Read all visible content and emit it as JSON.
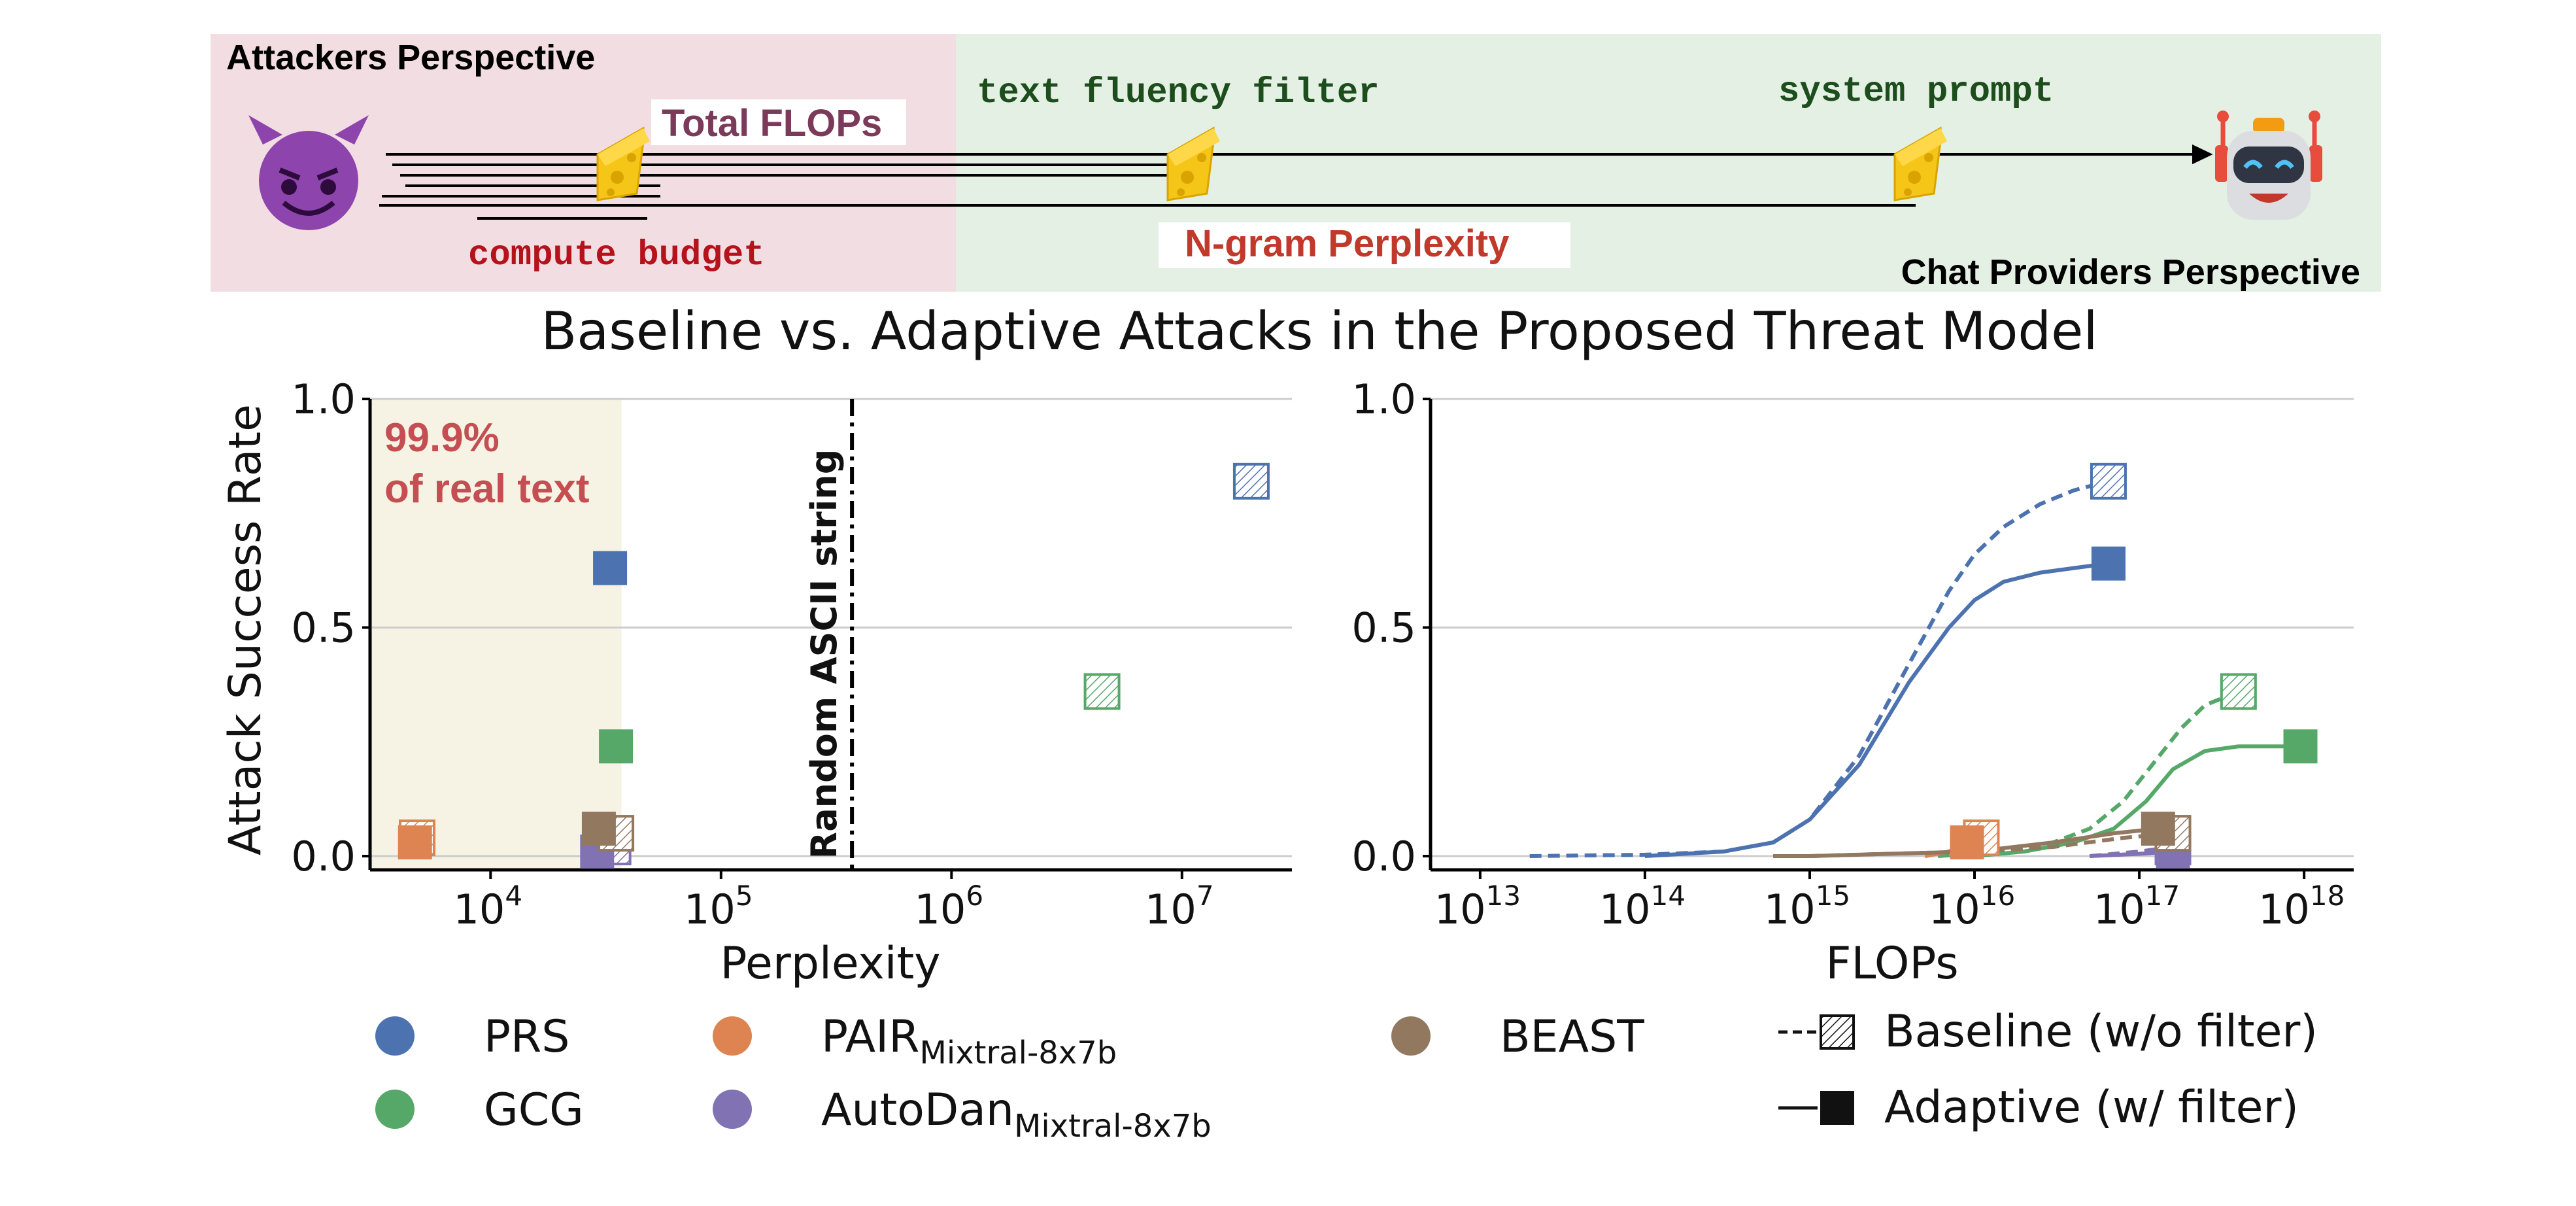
{
  "banner": {
    "left_title": "Attackers Perspective",
    "right_title": "Chat Providers Perspective",
    "total_flops": "Total FLOPs",
    "compute_budget": "compute budget",
    "fluency_filter": "text fluency filter",
    "ngram_perplexity": "N-gram Perplexity",
    "system_prompt": "system prompt",
    "left_bg": "#f2dee2",
    "right_bg": "#e4f0e3",
    "icons": [
      "devil-face-icon",
      "swiss-cheese-icon",
      "robot-face-icon"
    ]
  },
  "suptitle": "Baseline vs. Adaptive Attacks in the Proposed Threat Model",
  "region_label": [
    "99.9%",
    "of real text"
  ],
  "vline_label": "Random ASCII string",
  "legend": {
    "items": [
      {
        "label": "PRS",
        "color": "#4c72b0"
      },
      {
        "label": "GCG",
        "color": "#55a868"
      },
      {
        "label": "PAIR",
        "sub": "Mixtral-8x7b",
        "color": "#dd8452"
      },
      {
        "label": "AutoDan",
        "sub": "Mixtral-8x7b",
        "color": "#8172b3"
      },
      {
        "label": "BEAST",
        "color": "#937860"
      }
    ],
    "style_items": [
      {
        "label": "Baseline (w/o filter)"
      },
      {
        "label": "Adaptive (w/ filter)"
      }
    ]
  },
  "chart_data": [
    {
      "type": "scatter",
      "xlabel": "Perplexity",
      "ylabel": "Attack Success Rate",
      "xscale": "log",
      "xlim": [
        3000,
        30000000
      ],
      "ylim": [
        -0.03,
        1.0
      ],
      "xticks": [
        10000,
        100000,
        1000000,
        10000000
      ],
      "xtick_labels": [
        [
          "10",
          "4"
        ],
        [
          "10",
          "5"
        ],
        [
          "10",
          "6"
        ],
        [
          "10",
          "7"
        ]
      ],
      "yticks": [
        0.0,
        0.5,
        1.0
      ],
      "ytick_labels": [
        "0.0",
        "0.5",
        "1.0"
      ],
      "grid": "horizontal",
      "shaded_region": {
        "x": [
          3000,
          37000
        ],
        "color": "#f6f3e4"
      },
      "vline": {
        "x": 370000,
        "style": "dash-dot"
      },
      "series": [
        {
          "name": "PRS",
          "color": "#4c72b0",
          "adaptive": {
            "x": 33000,
            "y": 0.63
          },
          "baseline": {
            "x": 20000000,
            "y": 0.82
          }
        },
        {
          "name": "GCG",
          "color": "#55a868",
          "adaptive": {
            "x": 35000,
            "y": 0.24
          },
          "baseline": {
            "x": 4500000,
            "y": 0.36
          }
        },
        {
          "name": "PAIR",
          "color": "#dd8452",
          "adaptive": {
            "x": 4700,
            "y": 0.03
          },
          "baseline": {
            "x": 4800,
            "y": 0.04
          }
        },
        {
          "name": "AutoDan",
          "color": "#8172b3",
          "adaptive": {
            "x": 29000,
            "y": 0.01
          },
          "baseline": {
            "x": 34000,
            "y": 0.02
          }
        },
        {
          "name": "BEAST",
          "color": "#937860",
          "adaptive": {
            "x": 29500,
            "y": 0.06
          },
          "baseline": {
            "x": 35000,
            "y": 0.05
          }
        }
      ]
    },
    {
      "type": "line",
      "xlabel": "FLOPs",
      "xscale": "log",
      "xlim": [
        5000000000000.0,
        2e+18
      ],
      "ylim": [
        -0.03,
        1.0
      ],
      "xticks": [
        10000000000000.0,
        100000000000000.0,
        1000000000000000.0,
        1e+16,
        1e+17,
        1e+18
      ],
      "xtick_labels": [
        [
          "10",
          "13"
        ],
        [
          "10",
          "14"
        ],
        [
          "10",
          "15"
        ],
        [
          "10",
          "16"
        ],
        [
          "10",
          "17"
        ],
        [
          "10",
          "18"
        ]
      ],
      "yticks": [
        0.0,
        0.5,
        1.0
      ],
      "ytick_labels": [
        "0.0",
        "0.5",
        "1.0"
      ],
      "grid": "horizontal",
      "series": [
        {
          "name": "PRS",
          "style": "baseline",
          "color": "#4c72b0",
          "x": [
            20000000000000.0,
            100000000000000.0,
            300000000000000.0,
            600000000000000.0,
            1000000000000000.0,
            2000000000000000.0,
            4000000000000000.0,
            7000000000000000.0,
            1e+16,
            1.5e+16,
            2.5e+16,
            4e+16,
            6.5e+16
          ],
          "y": [
            0.0,
            0.003,
            0.01,
            0.03,
            0.08,
            0.22,
            0.42,
            0.58,
            0.66,
            0.72,
            0.77,
            0.8,
            0.82
          ]
        },
        {
          "name": "PRS",
          "style": "adaptive",
          "color": "#4c72b0",
          "x": [
            100000000000000.0,
            300000000000000.0,
            600000000000000.0,
            1000000000000000.0,
            2000000000000000.0,
            4000000000000000.0,
            7000000000000000.0,
            1e+16,
            1.5e+16,
            2.5e+16,
            4e+16,
            6.5e+16
          ],
          "y": [
            0.0,
            0.01,
            0.03,
            0.08,
            0.2,
            0.38,
            0.5,
            0.56,
            0.6,
            0.62,
            0.63,
            0.64
          ]
        },
        {
          "name": "GCG",
          "style": "baseline",
          "color": "#55a868",
          "x": [
            6000000000000000.0,
            1.5e+16,
            3e+16,
            5e+16,
            8e+16,
            1.2e+17,
            1.8e+17,
            2.5e+17,
            4e+17
          ],
          "y": [
            0.0,
            0.01,
            0.03,
            0.06,
            0.12,
            0.2,
            0.28,
            0.33,
            0.36
          ]
        },
        {
          "name": "GCG",
          "style": "adaptive",
          "color": "#55a868",
          "x": [
            1e+16,
            2e+16,
            4e+16,
            7e+16,
            1.1e+17,
            1.6e+17,
            2.5e+17,
            4e+17,
            9.5e+17
          ],
          "y": [
            0.0,
            0.01,
            0.03,
            0.06,
            0.12,
            0.19,
            0.23,
            0.24,
            0.24
          ]
        },
        {
          "name": "PAIR",
          "style": "baseline",
          "color": "#dd8452",
          "x": [
            5000000000000000.0,
            7000000000000000.0,
            9000000000000000.0,
            1.1e+16
          ],
          "y": [
            0.0,
            0.01,
            0.03,
            0.04
          ]
        },
        {
          "name": "PAIR",
          "style": "adaptive",
          "color": "#dd8452",
          "x": [
            5000000000000000.0,
            7000000000000000.0,
            9000000000000000.0
          ],
          "y": [
            0.0,
            0.01,
            0.03
          ]
        },
        {
          "name": "AutoDan",
          "style": "baseline",
          "color": "#8172b3",
          "x": [
            5e+16,
            1e+17,
            1.6e+17
          ],
          "y": [
            0.0,
            0.01,
            0.02
          ]
        },
        {
          "name": "AutoDan",
          "style": "adaptive",
          "color": "#8172b3",
          "x": [
            5e+16,
            1e+17,
            1.6e+17
          ],
          "y": [
            0.0,
            0.005,
            0.01
          ]
        },
        {
          "name": "BEAST",
          "style": "baseline",
          "color": "#937860",
          "x": [
            600000000000000.0,
            1000000000000000.0,
            3000000000000000.0,
            1e+16,
            3e+16,
            8e+16,
            1.6e+17
          ],
          "y": [
            0.0,
            0.0,
            0.005,
            0.01,
            0.02,
            0.04,
            0.05
          ]
        },
        {
          "name": "BEAST",
          "style": "adaptive",
          "color": "#937860",
          "x": [
            600000000000000.0,
            1000000000000000.0,
            3000000000000000.0,
            1e+16,
            3e+16,
            7e+16,
            1.3e+17
          ],
          "y": [
            0.0,
            0.0,
            0.005,
            0.01,
            0.03,
            0.05,
            0.06
          ]
        }
      ]
    }
  ]
}
